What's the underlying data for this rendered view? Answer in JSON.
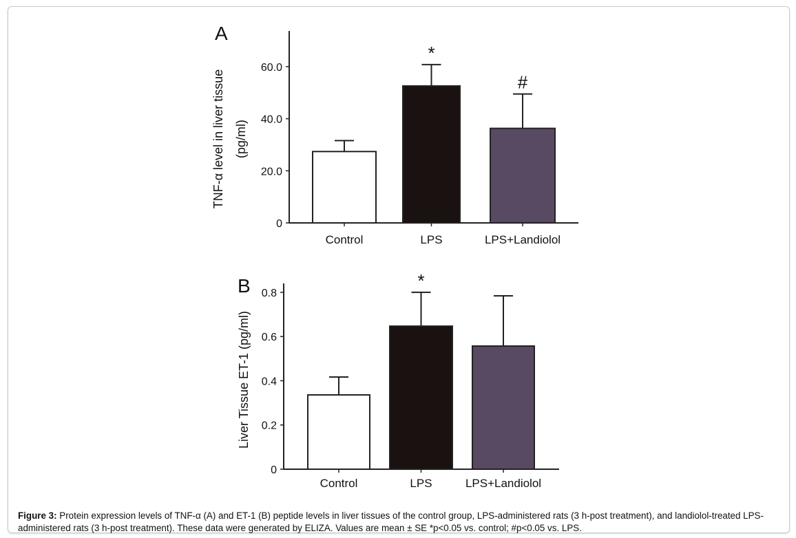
{
  "chart_data": [
    {
      "type": "bar",
      "panel": "A",
      "categories": [
        "Control",
        "LPS",
        "LPS+Landiolol"
      ],
      "values": [
        27.4,
        52.6,
        36.3
      ],
      "error_upper": [
        31.6,
        60.8,
        49.5
      ],
      "annotations": [
        "",
        "*",
        "#"
      ],
      "colors": [
        "#ffffff",
        "#1a1210",
        "#574a62"
      ],
      "ylabel_line1": "TNF-α level in liver tissue",
      "ylabel_line2": "(pg/ml)",
      "yticks": [
        0,
        20,
        40,
        60
      ],
      "ytick_labels": [
        "0",
        "20.0",
        "40.0",
        "60.0"
      ],
      "ylim": [
        0,
        73.7
      ],
      "grid": false
    },
    {
      "type": "bar",
      "panel": "B",
      "categories": [
        "Control",
        "LPS",
        "LPS+Landiolol"
      ],
      "values": [
        0.336,
        0.647,
        0.557
      ],
      "error_upper": [
        0.417,
        0.8,
        0.784
      ],
      "annotations": [
        "",
        "*",
        ""
      ],
      "colors": [
        "#ffffff",
        "#1a1210",
        "#574a62"
      ],
      "ylabel_line1": "Liver Tissue ET-1 (pg/ml)",
      "yticks": [
        0,
        0.2,
        0.4,
        0.6,
        0.8
      ],
      "ytick_labels": [
        "0",
        "0.2",
        "0.4",
        "0.6",
        "0.8"
      ],
      "ylim": [
        0,
        0.84
      ],
      "grid": false
    }
  ],
  "caption": {
    "label": "Figure 3:",
    "text": " Protein expression levels of TNF-α (A) and ET-1 (B) peptide levels in liver tissues of the control group, LPS-administered rats (3 h-post treatment), and landiolol-treated LPS-administered rats (3 h-post treatment). These data were generated by ELIZA. Values are mean ± SE *p<0.05 vs. control; #p<0.05 vs. LPS."
  }
}
